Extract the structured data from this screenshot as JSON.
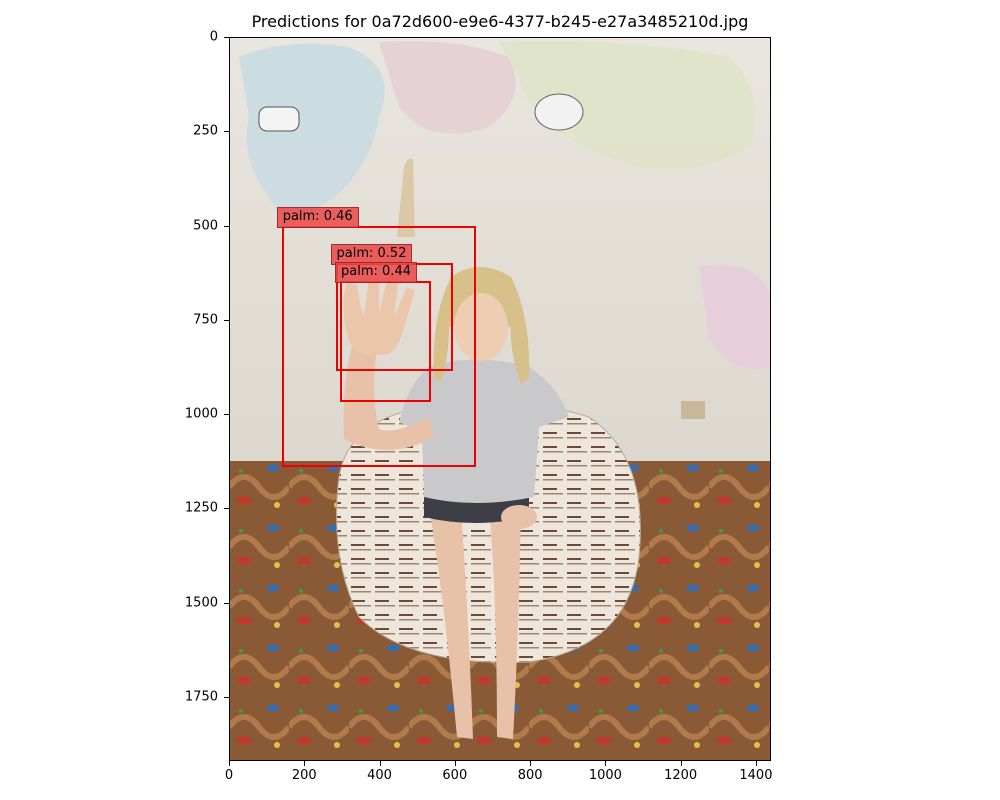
{
  "title": "Predictions for 0a72d600-e9e6-4377-b245-e27a3485210d.jpg",
  "axes": {
    "x_ticks": [
      0,
      200,
      400,
      600,
      800,
      1000,
      1200,
      1400
    ],
    "y_ticks": [
      0,
      250,
      500,
      750,
      1000,
      1250,
      1500,
      1750
    ],
    "x_range": [
      0,
      1440
    ],
    "y_range": [
      0,
      1920
    ]
  },
  "detections": [
    {
      "label": "palm: 0.46",
      "class": "palm",
      "score": 0.46,
      "x1": 140,
      "y1": 500,
      "x2": 655,
      "y2": 1140
    },
    {
      "label": "palm: 0.52",
      "class": "palm",
      "score": 0.52,
      "x1": 283,
      "y1": 600,
      "x2": 595,
      "y2": 885
    },
    {
      "label": "palm: 0.44",
      "class": "palm",
      "score": 0.44,
      "x1": 295,
      "y1": 648,
      "x2": 537,
      "y2": 968
    }
  ],
  "colors": {
    "box": "#ee0000",
    "label_bg": "#eb4646"
  }
}
